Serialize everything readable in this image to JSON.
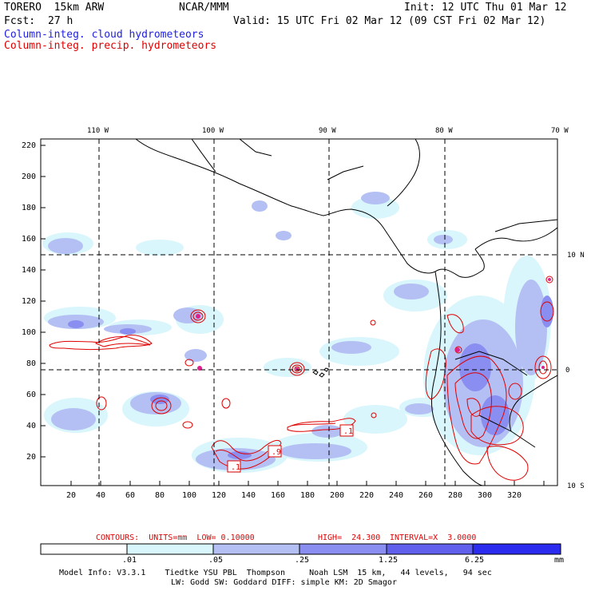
{
  "header": {
    "model": "TORERO  15km ARW",
    "org": "NCAR/MMM",
    "init": "Init: 12 UTC Thu 01 Mar 12",
    "fcst_label": "Fcst:",
    "fcst_value": "27 h",
    "valid": "Valid: 15 UTC Fri 02 Mar 12 (09 CST Fri 02 Mar 12)",
    "field1": "Column-integ. cloud hydrometeors",
    "field2": "Column-integ. precip. hydrometeors"
  },
  "axes": {
    "lon_top": [
      "110 W",
      "100 W",
      "90 W",
      "80 W",
      "70 W"
    ],
    "lat_right": [
      "10 N",
      "0",
      "10 S"
    ],
    "x_ticks": [
      "20",
      "40",
      "60",
      "80",
      "100",
      "120",
      "140",
      "160",
      "180",
      "200",
      "220",
      "240",
      "260",
      "280",
      "300",
      "320"
    ],
    "y_ticks": [
      "220",
      "200",
      "180",
      "160",
      "140",
      "120",
      "100",
      "80",
      "60",
      "40",
      "20"
    ]
  },
  "contour_labels": [
    ".1",
    ".9",
    ".1"
  ],
  "contours_info": {
    "label": "CONTOURS:  UNITS=mm  LOW= 0.10000",
    "high": "HIGH=  24.300",
    "interval": "INTERVAL=X  3.0000"
  },
  "colorbar": {
    "labels": [
      ".01",
      ".05",
      ".25",
      "1.25",
      "6.25",
      "mm"
    ],
    "colors": [
      "#ffffff",
      "#d8f6fb",
      "#b4c0f4",
      "#8a8ef0",
      "#6060ec",
      "#2c2cf0"
    ]
  },
  "footer": {
    "line1": "Model Info: V3.3.1    Tiedtke YSU PBL  Thompson     Noah LSM  15 km,   44 levels,   94 sec",
    "line2": "LW: Godd SW: Goddard DIFF: simple KM: 2D Smagor"
  },
  "colors": {
    "cloud": "#2020e0",
    "precip": "#e00000"
  }
}
